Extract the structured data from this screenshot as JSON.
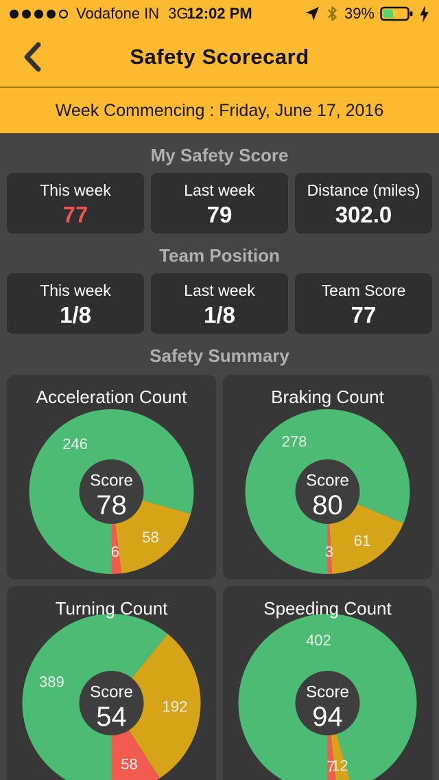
{
  "colors": {
    "header_yellow": "#FCBA30",
    "header_divider": "#9E7E14",
    "page_background": "#454545",
    "card_background": "#2F2F2F",
    "panel_background": "#373737",
    "good_green": "#4CBB73",
    "warn_amber": "#D5A419",
    "alert_red": "#F15B50",
    "highlight_red": "#EF5350",
    "battery_green": "#57D56E",
    "section_title_gray": "#B0B0B0"
  },
  "status_bar": {
    "carrier": "Vodafone IN",
    "network": "3G",
    "time": "12:02 PM",
    "battery_percent": "39%",
    "signal_filled_dots": 4,
    "signal_total_dots": 5
  },
  "header": {
    "title": "Safety Scorecard"
  },
  "week_banner": {
    "text": "Week Commencing : Friday, June 17, 2016"
  },
  "sections": {
    "my_safety_score": {
      "title": "My Safety Score",
      "cards": [
        {
          "label": "This week",
          "value": "77",
          "value_color": "highlight_red"
        },
        {
          "label": "Last week",
          "value": "79"
        },
        {
          "label": "Distance (miles)",
          "value": "302.0"
        }
      ]
    },
    "team_position": {
      "title": "Team Position",
      "cards": [
        {
          "label": "This week",
          "value": "1/8"
        },
        {
          "label": "Last week",
          "value": "1/8"
        },
        {
          "label": "Team Score",
          "value": "77"
        }
      ]
    },
    "safety_summary": {
      "title": "Safety Summary"
    }
  },
  "chart_data": [
    {
      "type": "pie",
      "title": "Acceleration Count",
      "donut": true,
      "start_angle_deg": 180,
      "direction": "clockwise",
      "center_label": "Score",
      "score": 78,
      "slices": [
        {
          "name": "green",
          "label": "246",
          "value": 246,
          "color": "#4CBB73"
        },
        {
          "name": "amber",
          "label": "58",
          "value": 58,
          "color": "#D5A419"
        },
        {
          "name": "red",
          "label": "6",
          "value": 6,
          "color": "#F15B50"
        }
      ]
    },
    {
      "type": "pie",
      "title": "Braking Count",
      "donut": true,
      "start_angle_deg": 180,
      "direction": "clockwise",
      "center_label": "Score",
      "score": 80,
      "slices": [
        {
          "name": "green",
          "label": "278",
          "value": 278,
          "color": "#4CBB73"
        },
        {
          "name": "amber",
          "label": "61",
          "value": 61,
          "color": "#D5A419"
        },
        {
          "name": "red",
          "label": "3",
          "value": 3,
          "color": "#F15B50"
        }
      ]
    },
    {
      "type": "pie",
      "title": "Turning Count",
      "donut": true,
      "start_angle_deg": 180,
      "direction": "clockwise",
      "center_label": "Score",
      "score": 54,
      "slices": [
        {
          "name": "green",
          "label": "389",
          "value": 389,
          "color": "#4CBB73"
        },
        {
          "name": "amber",
          "label": "192",
          "value": 192,
          "color": "#D5A419"
        },
        {
          "name": "red",
          "label": "58",
          "value": 58,
          "color": "#F15B50"
        }
      ]
    },
    {
      "type": "pie",
      "title": "Speeding Count",
      "donut": true,
      "start_angle_deg": 180,
      "direction": "clockwise",
      "center_label": "Score",
      "score": 94,
      "slices": [
        {
          "name": "green",
          "label": "402",
          "value": 402,
          "color": "#4CBB73"
        },
        {
          "name": "amber",
          "label": "12",
          "value": 12,
          "color": "#D5A419"
        },
        {
          "name": "red",
          "label": "7",
          "value": 7,
          "color": "#F15B50"
        }
      ]
    }
  ]
}
